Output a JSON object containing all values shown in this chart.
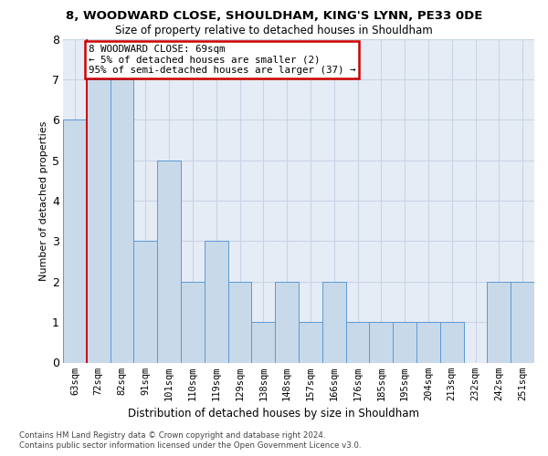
{
  "title1": "8, WOODWARD CLOSE, SHOULDHAM, KING'S LYNN, PE33 0DE",
  "title2": "Size of property relative to detached houses in Shouldham",
  "xlabel": "Distribution of detached houses by size in Shouldham",
  "ylabel": "Number of detached properties",
  "categories": [
    "63sqm",
    "72sqm",
    "82sqm",
    "91sqm",
    "101sqm",
    "110sqm",
    "119sqm",
    "129sqm",
    "138sqm",
    "148sqm",
    "157sqm",
    "166sqm",
    "176sqm",
    "185sqm",
    "195sqm",
    "204sqm",
    "213sqm",
    "232sqm",
    "242sqm",
    "251sqm"
  ],
  "values": [
    6,
    7,
    7,
    3,
    5,
    2,
    3,
    2,
    1,
    2,
    1,
    2,
    1,
    1,
    1,
    1,
    1,
    0,
    2,
    2
  ],
  "bar_color": "#c8d9ea",
  "bar_edge_color": "#5b9bd5",
  "vline_x": 0.5,
  "vline_color": "#cc0000",
  "ann_line1": "8 WOODWARD CLOSE: 69sqm",
  "ann_line2": "← 5% of detached houses are smaller (2)",
  "ann_line3": "95% of semi-detached houses are larger (37) →",
  "ann_edge_color": "#cc0000",
  "ylim": [
    0,
    8
  ],
  "yticks": [
    0,
    1,
    2,
    3,
    4,
    5,
    6,
    7,
    8
  ],
  "grid_color": "#c8d4e6",
  "bg_color": "#e6ecf5",
  "footnote1": "Contains HM Land Registry data © Crown copyright and database right 2024.",
  "footnote2": "Contains public sector information licensed under the Open Government Licence v3.0."
}
